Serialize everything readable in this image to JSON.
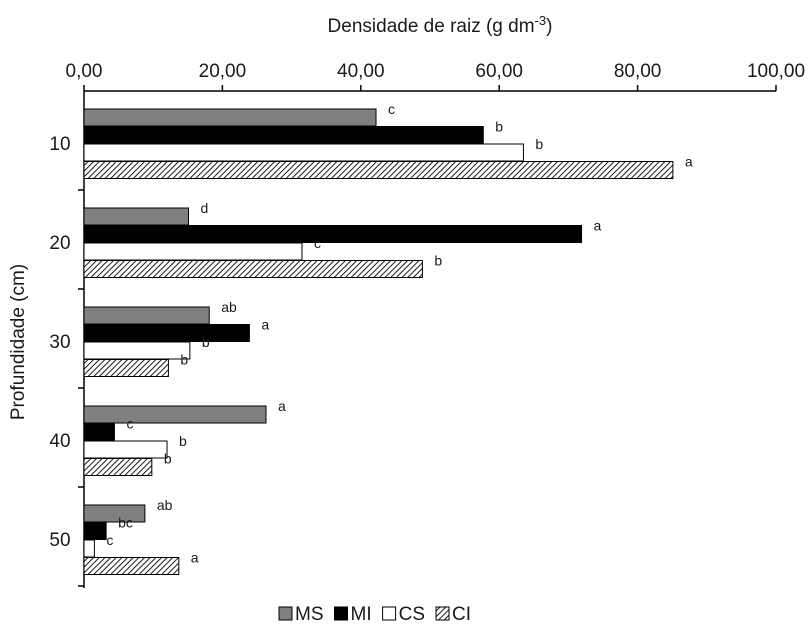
{
  "chart_data": {
    "type": "bar",
    "orientation": "horizontal",
    "xlabel": "Densidade de raiz (g dm",
    "xlabel_sup": "-3",
    "xlabel_end": ")",
    "ylabel": "Profundidade (cm)",
    "xlim": [
      0,
      100
    ],
    "x_ticks": [
      "0,00",
      "20,00",
      "40,00",
      "60,00",
      "80,00",
      "100,00"
    ],
    "x_tick_values": [
      0,
      20,
      40,
      60,
      80,
      100
    ],
    "categories": [
      "10",
      "20",
      "30",
      "40",
      "50"
    ],
    "series": [
      {
        "name": "MS",
        "color": "#808080",
        "pattern": "solid",
        "values": [
          42.2,
          15.1,
          18.1,
          26.3,
          8.8
        ],
        "labels": [
          "c",
          "d",
          "ab",
          "a",
          "ab"
        ]
      },
      {
        "name": "MI",
        "color": "#000000",
        "pattern": "solid",
        "values": [
          57.7,
          71.9,
          23.9,
          4.4,
          3.2
        ],
        "labels": [
          "b",
          "a",
          "a",
          "c",
          "bc"
        ]
      },
      {
        "name": "CS",
        "color": "#ffffff",
        "pattern": "outline",
        "values": [
          63.5,
          31.5,
          15.3,
          12.0,
          1.5
        ],
        "labels": [
          "b",
          "c",
          "b",
          "b",
          "c"
        ]
      },
      {
        "name": "CI",
        "color": "#ffffff",
        "pattern": "hatch",
        "values": [
          85.1,
          48.9,
          12.2,
          9.8,
          13.7
        ],
        "labels": [
          "a",
          "b",
          "b",
          "b",
          "a"
        ]
      }
    ],
    "legend_position": "bottom",
    "grid": false
  }
}
